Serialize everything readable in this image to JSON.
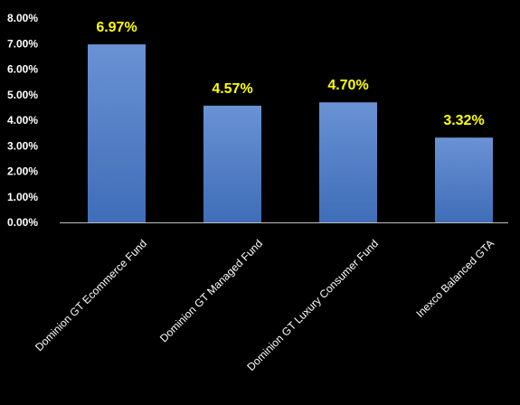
{
  "chart_data": {
    "type": "bar",
    "categories": [
      "Dominion GT Ecommerce Fund",
      "Dominion GT Managed Fund",
      "Dominion GT Luxury Consumer Fund",
      "Inexco Balanced GTA"
    ],
    "values": [
      6.97,
      4.57,
      4.7,
      3.32
    ],
    "data_labels": [
      "6.97%",
      "4.57%",
      "4.70%",
      "3.32%"
    ],
    "y_ticks": [
      "0.00%",
      "1.00%",
      "2.00%",
      "3.00%",
      "4.00%",
      "5.00%",
      "6.00%",
      "7.00%",
      "8.00%"
    ],
    "ylim": [
      0,
      8
    ],
    "title": "",
    "xlabel": "",
    "ylabel": "",
    "grid": false,
    "legend": "none"
  },
  "colors": {
    "background": "#000000",
    "bar_top": "#6A92D4",
    "bar_bottom": "#3F6DB8",
    "data_label": "#FFFF00",
    "axis_text": "#FFFFFF",
    "axis_line": "#BFBFBF"
  }
}
